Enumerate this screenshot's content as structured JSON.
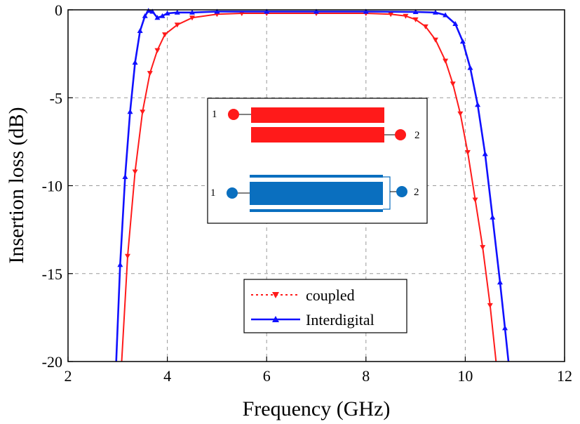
{
  "chart_data": {
    "type": "line",
    "xlabel": "Frequency (GHz)",
    "ylabel": "Insertion loss (dB)",
    "xlim": [
      2,
      12
    ],
    "ylim": [
      -20,
      0
    ],
    "x_ticks": [
      2,
      4,
      6,
      8,
      10,
      12
    ],
    "y_ticks": [
      0,
      -5,
      -10,
      -15,
      -20
    ],
    "x_tick_labels": [
      "2",
      "4",
      "6",
      "8",
      "10",
      "12"
    ],
    "y_tick_labels": [
      "0",
      "-5",
      "-10",
      "-15",
      "-20"
    ],
    "grid": true,
    "legend_position": "bottom-center",
    "series": [
      {
        "name": "coupled",
        "color": "#ff1a1a",
        "marker": "triangle-down",
        "line_style": "dotted",
        "x": [
          3.08,
          3.2,
          3.35,
          3.5,
          3.65,
          3.8,
          3.95,
          4.2,
          4.5,
          5.0,
          5.5,
          6.0,
          7.0,
          8.0,
          8.5,
          8.8,
          9.0,
          9.2,
          9.4,
          9.6,
          9.75,
          9.9,
          10.05,
          10.2,
          10.35,
          10.5,
          10.62
        ],
        "values": [
          -20,
          -14,
          -9.2,
          -5.8,
          -3.6,
          -2.3,
          -1.4,
          -0.85,
          -0.45,
          -0.25,
          -0.2,
          -0.2,
          -0.2,
          -0.2,
          -0.25,
          -0.35,
          -0.55,
          -0.95,
          -1.7,
          -2.9,
          -4.2,
          -5.9,
          -8.1,
          -10.8,
          -13.5,
          -16.8,
          -20
        ]
      },
      {
        "name": "Interdigital",
        "color": "#1010ff",
        "marker": "triangle-up",
        "line_style": "solid",
        "x": [
          2.97,
          3.05,
          3.15,
          3.25,
          3.35,
          3.45,
          3.55,
          3.62,
          3.7,
          3.8,
          3.9,
          4.0,
          4.2,
          4.5,
          5.0,
          6.0,
          7.0,
          8.0,
          9.0,
          9.4,
          9.6,
          9.8,
          9.95,
          10.1,
          10.25,
          10.4,
          10.55,
          10.7,
          10.8,
          10.87
        ],
        "values": [
          -20,
          -14.5,
          -9.5,
          -5.8,
          -3.0,
          -1.2,
          -0.35,
          -0.05,
          -0.1,
          -0.45,
          -0.35,
          -0.2,
          -0.15,
          -0.15,
          -0.1,
          -0.1,
          -0.1,
          -0.1,
          -0.12,
          -0.15,
          -0.3,
          -0.8,
          -1.8,
          -3.3,
          -5.4,
          -8.2,
          -11.8,
          -15.5,
          -18.1,
          -20
        ]
      }
    ],
    "inset": {
      "port_labels": [
        "1",
        "2",
        "1",
        "2"
      ],
      "colors": {
        "coupled": "#ff1a1a",
        "interdigital": "#0a6fbf"
      }
    }
  }
}
